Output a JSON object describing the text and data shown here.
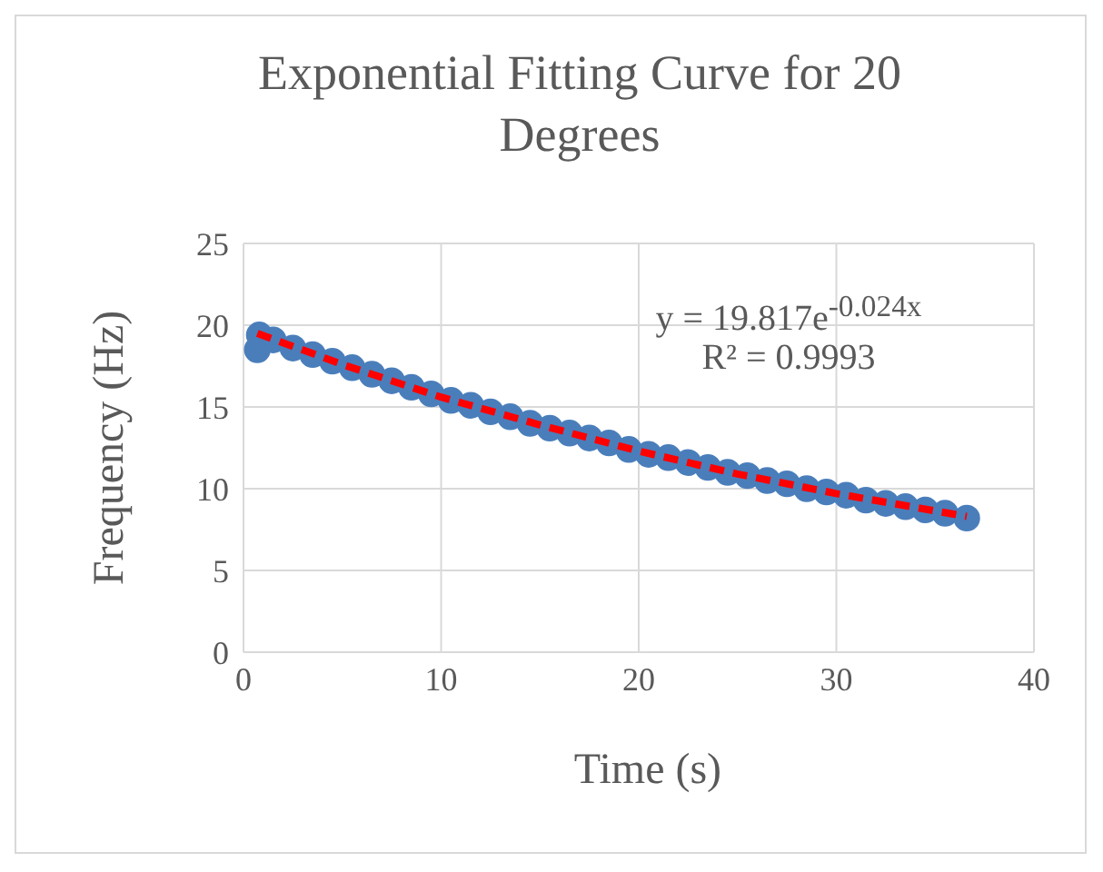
{
  "chart_data": {
    "type": "scatter",
    "title": "Exponential Fitting Curve for 20 Degrees",
    "xlabel": "Time (s)",
    "ylabel": "Frequency (Hz)",
    "xlim": [
      0,
      40
    ],
    "xticks": [
      0,
      10,
      20,
      30,
      40
    ],
    "ylim": [
      0,
      25
    ],
    "yticks": [
      0,
      5,
      10,
      15,
      20,
      25
    ],
    "grid": true,
    "annotations": [
      "y = 19.817e$^{-0.024x}$",
      "R² = 0.9993"
    ],
    "series": [
      {
        "color": "#4a7ebb",
        "marker": "circle",
        "x": [
          0.7,
          0.8,
          1.5,
          2.5,
          3.5,
          4.5,
          5.5,
          6.5,
          7.5,
          8.5,
          9.5,
          10.5,
          11.5,
          12.5,
          13.5,
          14.5,
          15.5,
          16.5,
          17.5,
          18.5,
          19.5,
          20.5,
          21.5,
          22.5,
          23.5,
          24.5,
          25.5,
          26.5,
          27.5,
          28.5,
          29.5,
          30.5,
          31.5,
          32.5,
          33.5,
          34.5,
          35.5,
          36.6
        ],
        "values": [
          18.5,
          19.4,
          19.1,
          18.6,
          18.2,
          17.8,
          17.4,
          17.0,
          16.6,
          16.2,
          15.8,
          15.4,
          15.1,
          14.7,
          14.4,
          14.0,
          13.7,
          13.4,
          13.1,
          12.8,
          12.4,
          12.1,
          11.9,
          11.6,
          11.3,
          11.0,
          10.8,
          10.5,
          10.3,
          10.0,
          9.8,
          9.6,
          9.3,
          9.1,
          8.9,
          8.7,
          8.5,
          8.2
        ]
      },
      {
        "type": "line",
        "color": "#ff0000",
        "line_style": "dashed",
        "marker": "none",
        "x": [
          0.7,
          5,
          10,
          15,
          20,
          25,
          30,
          36.6
        ],
        "values": [
          19.5,
          17.6,
          15.6,
          13.9,
          12.3,
          10.9,
          9.7,
          8.3
        ]
      }
    ]
  }
}
